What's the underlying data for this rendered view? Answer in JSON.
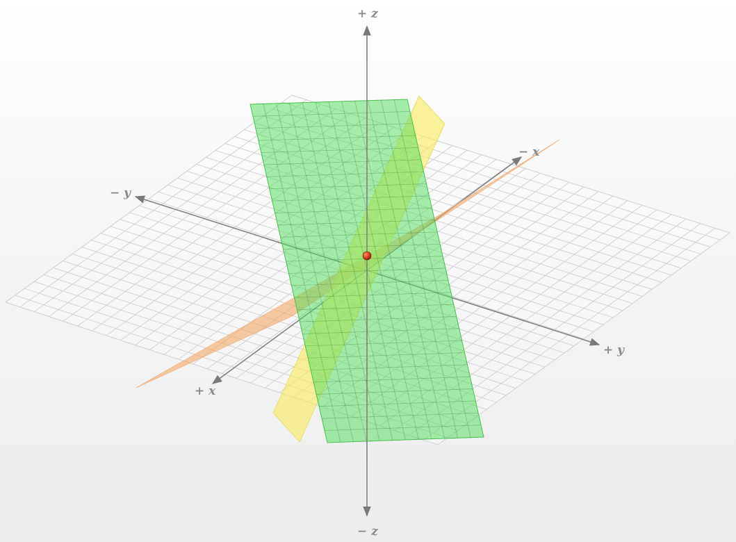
{
  "diagram": {
    "type": "3d-plane-intersection",
    "axis_labels": {
      "x_pos": "+ x",
      "x_neg": "− x",
      "y_pos": "+ y",
      "y_neg": "− y",
      "z_pos": "+ z",
      "z_neg": "− z"
    },
    "planes": [
      {
        "name": "orange-plane",
        "color": "#f5a35a",
        "opacity": 0.55
      },
      {
        "name": "yellow-plane",
        "color": "#f7ea5a",
        "opacity": 0.6
      },
      {
        "name": "green-plane",
        "color": "#4fdc5a",
        "opacity": 0.5
      }
    ],
    "intersection_point": {
      "color": "#d33c1c"
    },
    "floor_grid_color": "#cfcfcf",
    "axis_color": "#808080"
  }
}
